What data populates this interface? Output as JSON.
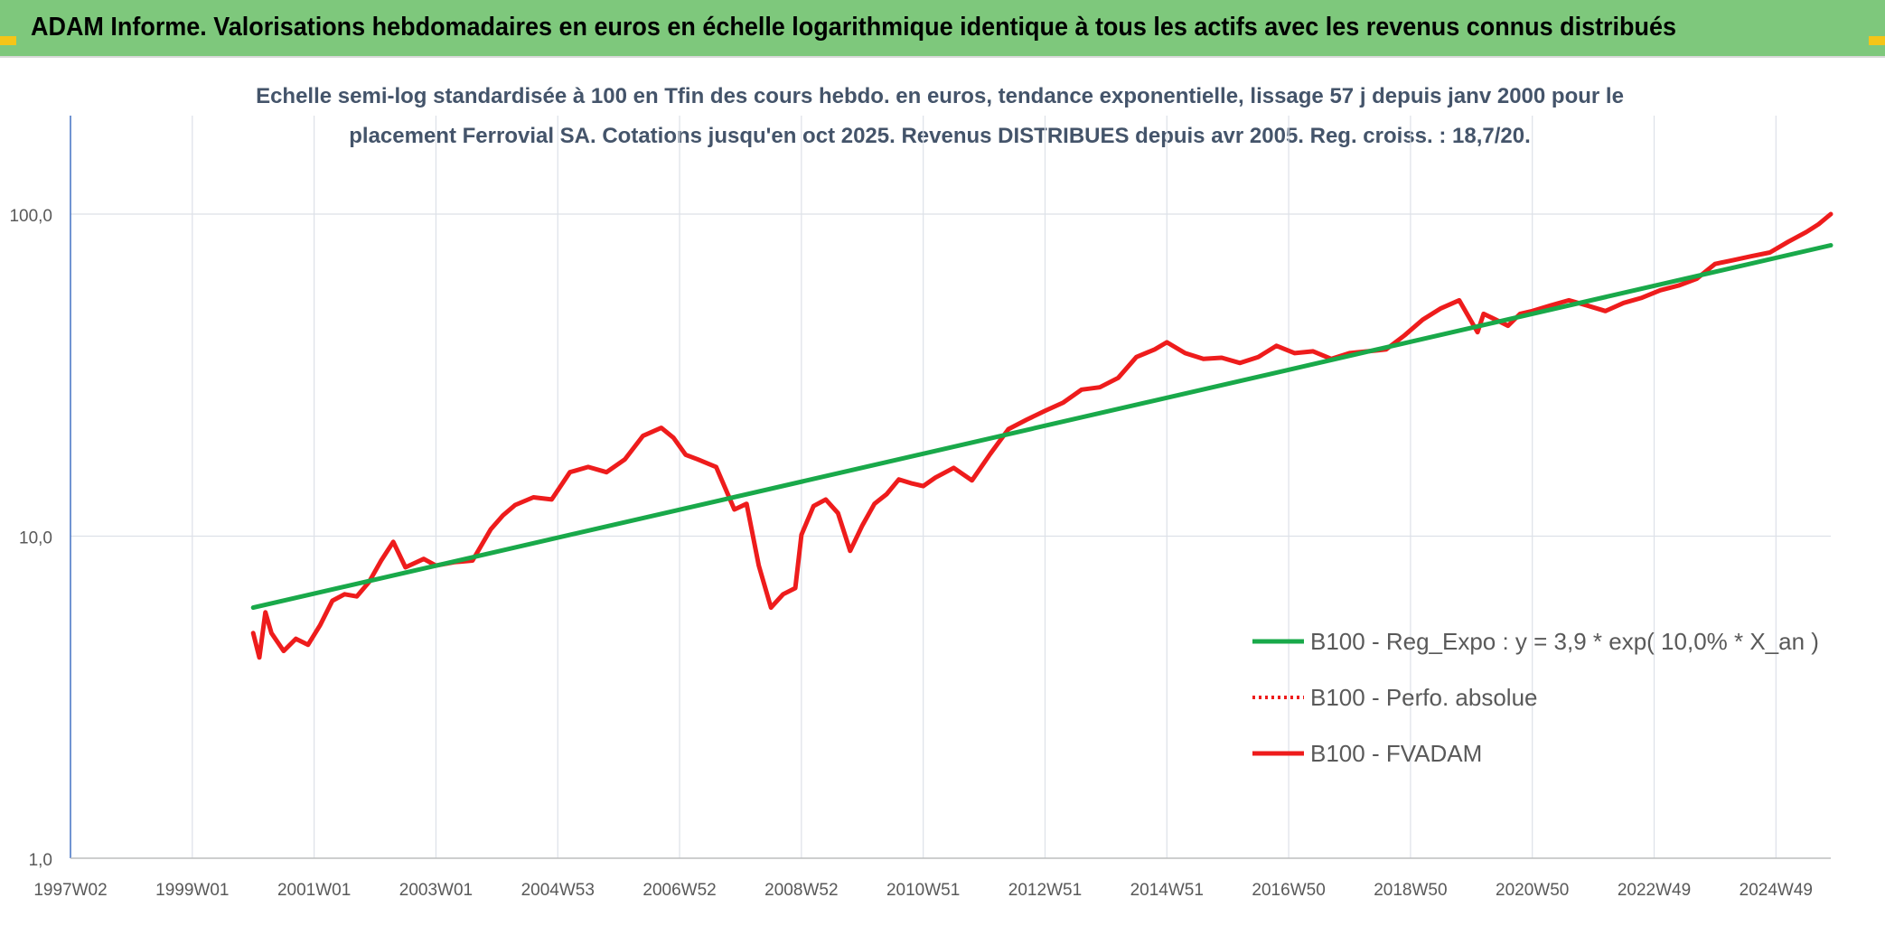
{
  "header": {
    "title": "ADAM Informe. Valorisations hebdomadaires en euros en échelle logarithmique identique à tous les actifs avec les revenus connus distribués"
  },
  "chart_data": {
    "type": "line",
    "title_lines": [
      "Echelle semi-log standardisée à 100 en Tfin des cours hebdo. en euros, tendance exponentielle, lissage 57 j depuis janv 2000 pour le",
      "placement Ferrovial SA. Cotations jusqu'en oct 2025. Revenus DISTRIBUES depuis avr 2005. Reg. croiss. : 18,7/20."
    ],
    "y_scale": "log",
    "ylim": [
      1,
      100
    ],
    "y_ticks": [
      {
        "value": 100,
        "label": "100,0"
      },
      {
        "value": 10,
        "label": "10,0"
      },
      {
        "value": 1,
        "label": "1,0"
      }
    ],
    "x_range": [
      1997.0,
      2025.9
    ],
    "x_ticks": [
      {
        "value": 1997.0,
        "label": "1997W02"
      },
      {
        "value": 1999.0,
        "label": "1999W01"
      },
      {
        "value": 2001.0,
        "label": "2001W01"
      },
      {
        "value": 2003.0,
        "label": "2003W01"
      },
      {
        "value": 2005.0,
        "label": "2004W53"
      },
      {
        "value": 2007.0,
        "label": "2006W52"
      },
      {
        "value": 2009.0,
        "label": "2008W52"
      },
      {
        "value": 2011.0,
        "label": "2010W51"
      },
      {
        "value": 2013.0,
        "label": "2012W51"
      },
      {
        "value": 2015.0,
        "label": "2014W51"
      },
      {
        "value": 2017.0,
        "label": "2016W50"
      },
      {
        "value": 2019.0,
        "label": "2018W50"
      },
      {
        "value": 2021.0,
        "label": "2020W50"
      },
      {
        "value": 2023.0,
        "label": "2022W49"
      },
      {
        "value": 2025.0,
        "label": "2024W49"
      }
    ],
    "grid": true,
    "legend_position": "lower-right",
    "series": [
      {
        "name": "B100 - Reg_Expo : y = 3,9 * exp( 10,0% *  X_an )",
        "color": "#19a94a",
        "style": "solid",
        "x": [
          2000.0,
          2025.9
        ],
        "y": [
          6.0,
          80.0
        ]
      },
      {
        "name": "B100 - Perfo. absolue",
        "color": "#ee1c1c",
        "style": "dotted",
        "x": [],
        "y": []
      },
      {
        "name": "B100 - FVADAM",
        "color": "#ee1c1c",
        "style": "solid",
        "x": [
          2000.0,
          2000.1,
          2000.2,
          2000.3,
          2000.5,
          2000.7,
          2000.9,
          2001.1,
          2001.3,
          2001.5,
          2001.7,
          2001.9,
          2002.1,
          2002.3,
          2002.5,
          2002.8,
          2003.0,
          2003.3,
          2003.6,
          2003.9,
          2004.1,
          2004.3,
          2004.6,
          2004.9,
          2005.2,
          2005.5,
          2005.8,
          2006.1,
          2006.4,
          2006.7,
          2006.9,
          2007.1,
          2007.3,
          2007.6,
          2007.9,
          2008.1,
          2008.3,
          2008.5,
          2008.7,
          2008.9,
          2009.0,
          2009.2,
          2009.4,
          2009.6,
          2009.8,
          2010.0,
          2010.2,
          2010.4,
          2010.6,
          2010.8,
          2011.0,
          2011.2,
          2011.5,
          2011.8,
          2012.1,
          2012.4,
          2012.7,
          2013.0,
          2013.3,
          2013.6,
          2013.9,
          2014.2,
          2014.5,
          2014.8,
          2015.0,
          2015.3,
          2015.6,
          2015.9,
          2016.2,
          2016.5,
          2016.8,
          2017.1,
          2017.4,
          2017.7,
          2018.0,
          2018.3,
          2018.6,
          2018.9,
          2019.2,
          2019.5,
          2019.8,
          2020.1,
          2020.2,
          2020.4,
          2020.6,
          2020.8,
          2021.0,
          2021.3,
          2021.6,
          2021.9,
          2022.2,
          2022.5,
          2022.8,
          2023.1,
          2023.4,
          2023.7,
          2024.0,
          2024.3,
          2024.6,
          2024.9,
          2025.2,
          2025.5,
          2025.7,
          2025.9
        ],
        "y": [
          5.0,
          4.2,
          5.8,
          5.0,
          4.4,
          4.8,
          4.6,
          5.3,
          6.3,
          6.6,
          6.5,
          7.2,
          8.4,
          9.6,
          8.0,
          8.5,
          8.1,
          8.3,
          8.4,
          10.5,
          11.6,
          12.5,
          13.2,
          13.0,
          15.8,
          16.4,
          15.8,
          17.3,
          20.5,
          21.7,
          20.2,
          17.9,
          17.3,
          16.4,
          12.1,
          12.6,
          8.1,
          6.0,
          6.6,
          6.9,
          10.1,
          12.4,
          13.0,
          11.8,
          9.0,
          10.8,
          12.6,
          13.5,
          15.0,
          14.6,
          14.3,
          15.2,
          16.3,
          14.9,
          18.0,
          21.5,
          23.0,
          24.5,
          26.0,
          28.5,
          29.0,
          31.0,
          36.0,
          38.0,
          40.0,
          37.0,
          35.5,
          35.8,
          34.5,
          36.0,
          39.0,
          37.0,
          37.5,
          35.5,
          37.0,
          37.5,
          38.0,
          42.0,
          47.0,
          51.0,
          54.0,
          43.0,
          49.0,
          47.0,
          45.0,
          49.0,
          50.0,
          52.0,
          54.0,
          52.0,
          50.0,
          53.0,
          55.0,
          58.0,
          60.0,
          63.0,
          70.0,
          72.0,
          74.0,
          76.0,
          82.0,
          88.0,
          93.0,
          100.0
        ]
      }
    ]
  }
}
